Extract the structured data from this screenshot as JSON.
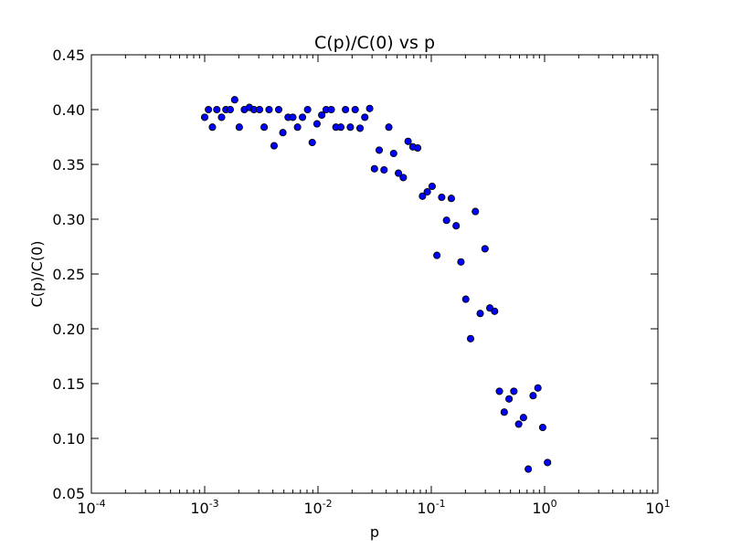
{
  "chart_data": {
    "type": "scatter",
    "title": "C(p)/C(0) vs p",
    "xlabel": "p",
    "ylabel": "C(p)/C(0)",
    "x_scale": "log",
    "xlim": [
      0.0001,
      10
    ],
    "ylim": [
      0.05,
      0.45
    ],
    "x_ticks": [
      {
        "base": "10",
        "exp": "-4"
      },
      {
        "base": "10",
        "exp": "-3"
      },
      {
        "base": "10",
        "exp": "-2"
      },
      {
        "base": "10",
        "exp": "-1"
      },
      {
        "base": "10",
        "exp": "0"
      },
      {
        "base": "10",
        "exp": "1"
      }
    ],
    "y_ticks": [
      "0.05",
      "0.10",
      "0.15",
      "0.20",
      "0.25",
      "0.30",
      "0.35",
      "0.40",
      "0.45"
    ],
    "marker_color": "#0000ff",
    "marker_edge": "#000000",
    "grid": false,
    "series": [
      {
        "points": [
          [
            0.001,
            0.393
          ],
          [
            0.00108,
            0.4
          ],
          [
            0.00117,
            0.384
          ],
          [
            0.00128,
            0.4
          ],
          [
            0.00141,
            0.393
          ],
          [
            0.00154,
            0.4
          ],
          [
            0.00168,
            0.4
          ],
          [
            0.00184,
            0.409
          ],
          [
            0.00202,
            0.384
          ],
          [
            0.00224,
            0.4
          ],
          [
            0.00248,
            0.402
          ],
          [
            0.00272,
            0.4
          ],
          [
            0.00305,
            0.4
          ],
          [
            0.00335,
            0.384
          ],
          [
            0.0037,
            0.4
          ],
          [
            0.0041,
            0.367
          ],
          [
            0.0045,
            0.4
          ],
          [
            0.0049,
            0.379
          ],
          [
            0.00545,
            0.393
          ],
          [
            0.006,
            0.393
          ],
          [
            0.0066,
            0.384
          ],
          [
            0.0073,
            0.393
          ],
          [
            0.0081,
            0.4
          ],
          [
            0.0089,
            0.37
          ],
          [
            0.0098,
            0.387
          ],
          [
            0.0108,
            0.395
          ],
          [
            0.0118,
            0.4
          ],
          [
            0.0131,
            0.4
          ],
          [
            0.0144,
            0.384
          ],
          [
            0.0159,
            0.384
          ],
          [
            0.0175,
            0.4
          ],
          [
            0.0193,
            0.384
          ],
          [
            0.0213,
            0.4
          ],
          [
            0.0235,
            0.383
          ],
          [
            0.0259,
            0.393
          ],
          [
            0.0286,
            0.401
          ],
          [
            0.0315,
            0.346
          ],
          [
            0.0347,
            0.363
          ],
          [
            0.0383,
            0.345
          ],
          [
            0.0422,
            0.384
          ],
          [
            0.0465,
            0.36
          ],
          [
            0.0513,
            0.342
          ],
          [
            0.0566,
            0.338
          ],
          [
            0.0624,
            0.371
          ],
          [
            0.0688,
            0.366
          ],
          [
            0.0758,
            0.365
          ],
          [
            0.0836,
            0.321
          ],
          [
            0.0922,
            0.325
          ],
          [
            0.1017,
            0.33
          ],
          [
            0.1121,
            0.267
          ],
          [
            0.1236,
            0.32
          ],
          [
            0.1363,
            0.299
          ],
          [
            0.1503,
            0.319
          ],
          [
            0.1657,
            0.294
          ],
          [
            0.1827,
            0.261
          ],
          [
            0.2015,
            0.227
          ],
          [
            0.2222,
            0.191
          ],
          [
            0.245,
            0.307
          ],
          [
            0.2702,
            0.214
          ],
          [
            0.2979,
            0.273
          ],
          [
            0.3285,
            0.219
          ],
          [
            0.3622,
            0.216
          ],
          [
            0.3994,
            0.143
          ],
          [
            0.4404,
            0.124
          ],
          [
            0.4856,
            0.136
          ],
          [
            0.5355,
            0.143
          ],
          [
            0.5905,
            0.113
          ],
          [
            0.6511,
            0.119
          ],
          [
            0.718,
            0.072
          ],
          [
            0.7917,
            0.139
          ],
          [
            0.873,
            0.146
          ],
          [
            0.9627,
            0.11
          ],
          [
            1.0616,
            0.078
          ]
        ]
      }
    ]
  }
}
